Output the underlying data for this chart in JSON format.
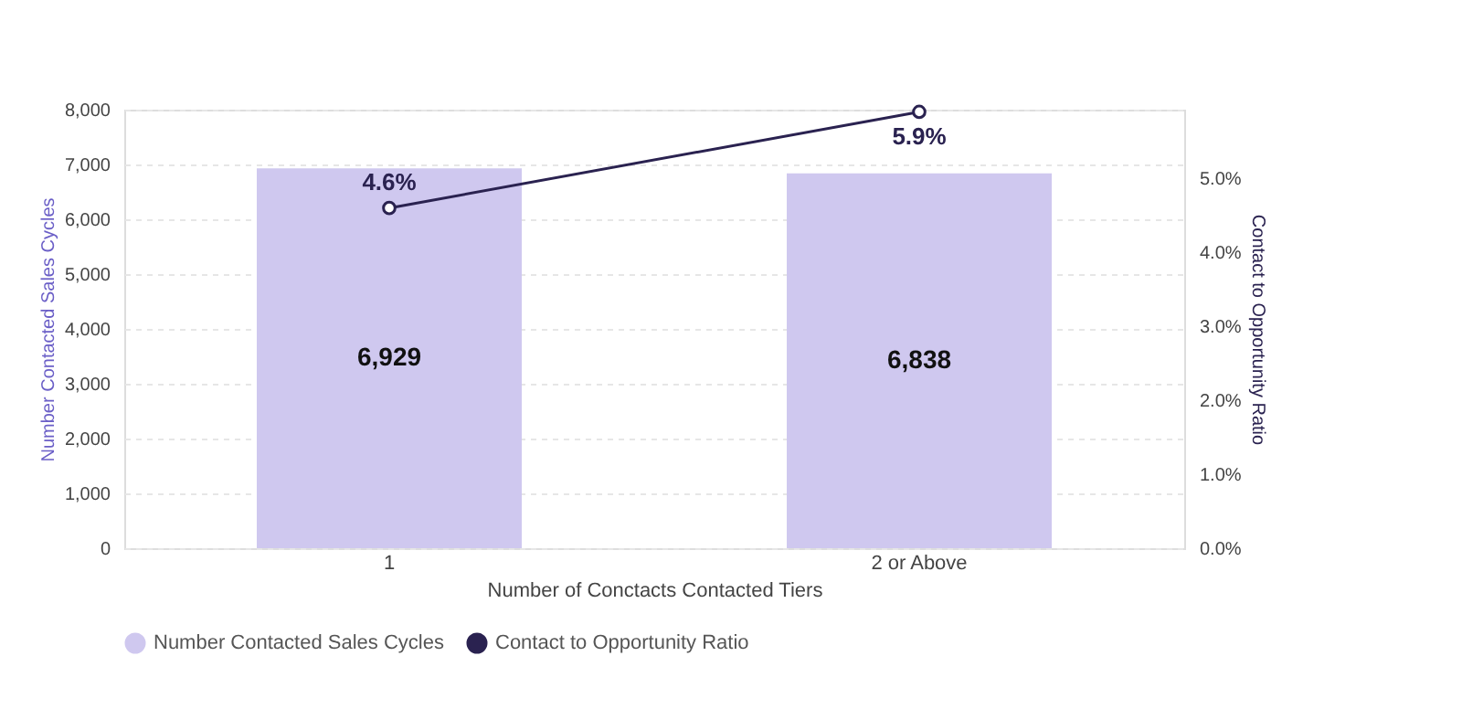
{
  "chart_data": {
    "type": "bar",
    "xlabel": "Number of Conctacts Contacted Tiers",
    "ylabel": "Number Contacted Sales Cycles",
    "y2label": "Contact to Opportunity Ratio",
    "categories": [
      "1",
      "2 or Above"
    ],
    "series": [
      {
        "name": "Number Contacted Sales Cycles",
        "color": "#cfc8ef",
        "values": [
          6929,
          6838
        ],
        "value_labels": [
          "6,929",
          "6,838"
        ]
      },
      {
        "name": "Contact to Opportunity Ratio",
        "type": "line",
        "axis": "y2",
        "color": "#2a2250",
        "marker": "circle",
        "values": [
          4.6,
          5.9
        ],
        "value_labels": [
          "4.6%",
          "5.9%"
        ]
      }
    ],
    "ylim": [
      0,
      8000
    ],
    "yticks": [
      0,
      {
        "value": 1000,
        "label": "1,000"
      },
      {
        "value": 2000,
        "label": "2,000"
      },
      {
        "value": 3000,
        "label": "3,000"
      },
      {
        "value": 4000,
        "label": "4,000"
      },
      {
        "value": 5000,
        "label": "5,000"
      },
      {
        "value": 6000,
        "label": "6,000"
      },
      {
        "value": 7000,
        "label": "7,000"
      },
      {
        "value": 8000,
        "label": "8,000"
      }
    ],
    "y2lim": [
      0,
      5.93
    ],
    "y2ticks": [
      {
        "value": 0,
        "label": "0.0%"
      },
      {
        "value": 1,
        "label": "1.0%"
      },
      {
        "value": 2,
        "label": "2.0%"
      },
      {
        "value": 3,
        "label": "3.0%"
      },
      {
        "value": 4,
        "label": "4.0%"
      },
      {
        "value": 5,
        "label": "5.0%"
      }
    ],
    "grid": "y",
    "legend": "bottom"
  }
}
